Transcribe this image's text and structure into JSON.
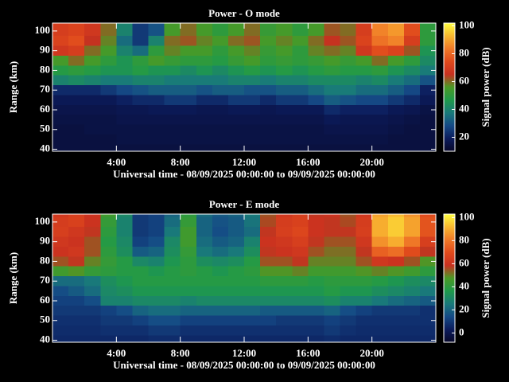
{
  "chart_data": [
    {
      "type": "heatmap",
      "title": "Power - O mode",
      "xlabel": "Universal time - 08/09/2025 00:00:00 to 09/09/2025 00:00:00",
      "ylabel": "Range (km)",
      "colorbar_label": "Signal power (dB)",
      "x": [
        0.5,
        1.5,
        2.5,
        3.5,
        4.5,
        5.5,
        6.5,
        7.5,
        8.5,
        9.5,
        10.5,
        11.5,
        12.5,
        13.5,
        14.5,
        15.5,
        16.5,
        17.5,
        18.5,
        19.5,
        20.5,
        21.5,
        22.5,
        23.5
      ],
      "y": [
        105,
        100,
        95,
        90,
        85,
        80,
        75,
        70,
        65,
        60,
        55,
        50,
        45,
        40
      ],
      "z": [
        [
          70,
          72,
          68,
          60,
          40,
          25,
          30,
          55,
          60,
          55,
          50,
          55,
          60,
          52,
          55,
          50,
          55,
          62,
          60,
          70,
          85,
          88,
          75,
          50
        ],
        [
          70,
          72,
          68,
          60,
          40,
          25,
          30,
          55,
          60,
          55,
          50,
          55,
          60,
          52,
          55,
          50,
          55,
          62,
          60,
          70,
          85,
          88,
          75,
          50
        ],
        [
          72,
          75,
          65,
          58,
          35,
          25,
          40,
          60,
          62,
          58,
          55,
          60,
          62,
          55,
          58,
          55,
          60,
          65,
          62,
          72,
          82,
          85,
          70,
          50
        ],
        [
          68,
          70,
          60,
          55,
          40,
          35,
          50,
          58,
          55,
          55,
          50,
          55,
          58,
          52,
          55,
          50,
          58,
          60,
          58,
          68,
          75,
          72,
          62,
          45
        ],
        [
          55,
          60,
          55,
          50,
          45,
          50,
          55,
          52,
          50,
          50,
          48,
          52,
          55,
          50,
          52,
          50,
          52,
          55,
          52,
          55,
          60,
          55,
          50,
          42
        ],
        [
          48,
          50,
          48,
          45,
          45,
          48,
          45,
          45,
          42,
          45,
          42,
          45,
          48,
          45,
          48,
          45,
          48,
          50,
          48,
          48,
          50,
          45,
          42,
          38
        ],
        [
          40,
          42,
          40,
          38,
          38,
          40,
          40,
          38,
          38,
          38,
          38,
          40,
          40,
          38,
          40,
          40,
          42,
          42,
          42,
          40,
          42,
          38,
          35,
          30
        ],
        [
          22,
          22,
          22,
          25,
          28,
          30,
          32,
          32,
          32,
          30,
          32,
          32,
          30,
          30,
          32,
          32,
          35,
          38,
          38,
          35,
          35,
          32,
          28,
          20
        ],
        [
          18,
          18,
          18,
          18,
          20,
          22,
          22,
          25,
          25,
          22,
          22,
          25,
          25,
          22,
          25,
          25,
          28,
          32,
          30,
          28,
          28,
          25,
          22,
          18
        ],
        [
          16,
          16,
          16,
          16,
          17,
          17,
          18,
          18,
          18,
          17,
          17,
          18,
          18,
          17,
          18,
          18,
          18,
          22,
          20,
          20,
          20,
          18,
          17,
          15
        ],
        [
          15,
          15,
          15,
          15,
          16,
          16,
          16,
          16,
          16,
          16,
          16,
          16,
          16,
          16,
          16,
          16,
          16,
          18,
          17,
          17,
          17,
          16,
          15,
          14
        ],
        [
          14,
          14,
          15,
          15,
          15,
          15,
          15,
          15,
          15,
          15,
          15,
          15,
          15,
          15,
          15,
          15,
          15,
          16,
          16,
          16,
          16,
          15,
          14,
          14
        ],
        [
          14,
          14,
          14,
          14,
          15,
          15,
          15,
          15,
          15,
          15,
          15,
          15,
          15,
          15,
          15,
          15,
          15,
          15,
          15,
          15,
          15,
          14,
          14,
          14
        ],
        [
          14,
          14,
          14,
          14,
          14,
          14,
          14,
          14,
          14,
          14,
          14,
          14,
          14,
          14,
          14,
          14,
          14,
          14,
          14,
          14,
          14,
          14,
          14,
          14
        ]
      ],
      "xlim": [
        0,
        24
      ],
      "ylim": [
        39,
        104
      ],
      "xticks": [
        {
          "value": 4,
          "label": "4:00"
        },
        {
          "value": 8,
          "label": "8:00"
        },
        {
          "value": 12,
          "label": "12:00"
        },
        {
          "value": 16,
          "label": "16:00"
        },
        {
          "value": 20,
          "label": "20:00"
        }
      ],
      "yticks": [
        40,
        50,
        60,
        70,
        80,
        90,
        100
      ],
      "zlim": [
        10,
        102
      ],
      "zticks": [
        20,
        40,
        60,
        80,
        100
      ],
      "colormap": [
        "#08082a",
        "#0c1c5c",
        "#154a86",
        "#197a7a",
        "#1f9a4a",
        "#4a9a26",
        "#c83020",
        "#e04a1c",
        "#f07a28",
        "#f8b830",
        "#ffff40"
      ]
    },
    {
      "type": "heatmap",
      "title": "Power - E mode",
      "xlabel": "Universal time - 08/09/2025 00:00:00 to 09/09/2025 00:00:00",
      "ylabel": "Range (km)",
      "colorbar_label": "Signal power (dB)",
      "x": [
        0.5,
        1.5,
        2.5,
        3.5,
        4.5,
        5.5,
        6.5,
        7.5,
        8.5,
        9.5,
        10.5,
        11.5,
        12.5,
        13.5,
        14.5,
        15.5,
        16.5,
        17.5,
        18.5,
        19.5,
        20.5,
        21.5,
        22.5,
        23.5
      ],
      "y": [
        105,
        100,
        95,
        90,
        85,
        80,
        75,
        70,
        65,
        60,
        55,
        50,
        45,
        40
      ],
      "z": [
        [
          62,
          65,
          60,
          45,
          30,
          10,
          12,
          20,
          40,
          22,
          18,
          20,
          25,
          55,
          62,
          65,
          58,
          60,
          55,
          62,
          88,
          92,
          85,
          70
        ],
        [
          64,
          66,
          60,
          42,
          28,
          10,
          12,
          22,
          42,
          20,
          16,
          18,
          24,
          56,
          64,
          66,
          60,
          58,
          56,
          64,
          90,
          95,
          88,
          72
        ],
        [
          65,
          62,
          58,
          40,
          28,
          10,
          12,
          25,
          45,
          20,
          15,
          18,
          22,
          58,
          65,
          68,
          60,
          58,
          58,
          65,
          90,
          95,
          88,
          72
        ],
        [
          62,
          60,
          55,
          38,
          30,
          12,
          15,
          30,
          45,
          22,
          18,
          20,
          28,
          60,
          62,
          65,
          58,
          55,
          55,
          62,
          85,
          90,
          80,
          65
        ],
        [
          60,
          62,
          55,
          40,
          32,
          18,
          20,
          32,
          42,
          25,
          22,
          25,
          32,
          58,
          60,
          62,
          55,
          52,
          52,
          58,
          75,
          78,
          70,
          58
        ],
        [
          55,
          58,
          50,
          42,
          38,
          30,
          28,
          35,
          40,
          32,
          30,
          32,
          38,
          55,
          55,
          58,
          50,
          50,
          50,
          55,
          62,
          60,
          55,
          48
        ],
        [
          45,
          48,
          42,
          40,
          38,
          38,
          35,
          38,
          40,
          38,
          35,
          38,
          40,
          48,
          48,
          50,
          45,
          45,
          45,
          48,
          50,
          48,
          45,
          40
        ],
        [
          22,
          22,
          25,
          32,
          35,
          38,
          38,
          38,
          38,
          38,
          38,
          38,
          38,
          40,
          40,
          40,
          38,
          40,
          40,
          40,
          38,
          35,
          32,
          30
        ],
        [
          15,
          18,
          22,
          30,
          32,
          35,
          35,
          35,
          35,
          35,
          35,
          35,
          35,
          35,
          35,
          35,
          35,
          38,
          35,
          35,
          32,
          30,
          28,
          25
        ],
        [
          12,
          12,
          15,
          28,
          28,
          30,
          30,
          30,
          28,
          30,
          30,
          30,
          30,
          30,
          30,
          30,
          30,
          32,
          28,
          28,
          25,
          22,
          20,
          18
        ],
        [
          10,
          10,
          10,
          12,
          15,
          20,
          22,
          22,
          20,
          20,
          20,
          20,
          20,
          18,
          18,
          18,
          18,
          20,
          15,
          12,
          10,
          10,
          10,
          8
        ],
        [
          8,
          8,
          8,
          10,
          10,
          12,
          15,
          15,
          12,
          12,
          12,
          12,
          12,
          12,
          10,
          10,
          10,
          12,
          10,
          8,
          8,
          8,
          8,
          8
        ],
        [
          7,
          7,
          7,
          8,
          8,
          8,
          10,
          10,
          8,
          8,
          8,
          8,
          8,
          8,
          8,
          8,
          8,
          10,
          8,
          7,
          7,
          7,
          7,
          7
        ],
        [
          6,
          6,
          6,
          6,
          6,
          6,
          7,
          7,
          6,
          6,
          6,
          6,
          6,
          6,
          6,
          6,
          6,
          7,
          6,
          6,
          6,
          6,
          6,
          6
        ]
      ],
      "xlim": [
        0,
        24
      ],
      "ylim": [
        39,
        104
      ],
      "xticks": [
        {
          "value": 4,
          "label": "4:00"
        },
        {
          "value": 8,
          "label": "8:00"
        },
        {
          "value": 12,
          "label": "12:00"
        },
        {
          "value": 16,
          "label": "16:00"
        },
        {
          "value": 20,
          "label": "20:00"
        }
      ],
      "yticks": [
        40,
        50,
        60,
        70,
        80,
        90,
        100
      ],
      "zlim": [
        -8,
        103
      ],
      "zticks": [
        0,
        20,
        40,
        60,
        80,
        100
      ],
      "colormap": [
        "#08082a",
        "#0c1c5c",
        "#154a86",
        "#197a7a",
        "#1f9a4a",
        "#4a9a26",
        "#c83020",
        "#e04a1c",
        "#f07a28",
        "#f8b830",
        "#ffff40"
      ]
    }
  ]
}
